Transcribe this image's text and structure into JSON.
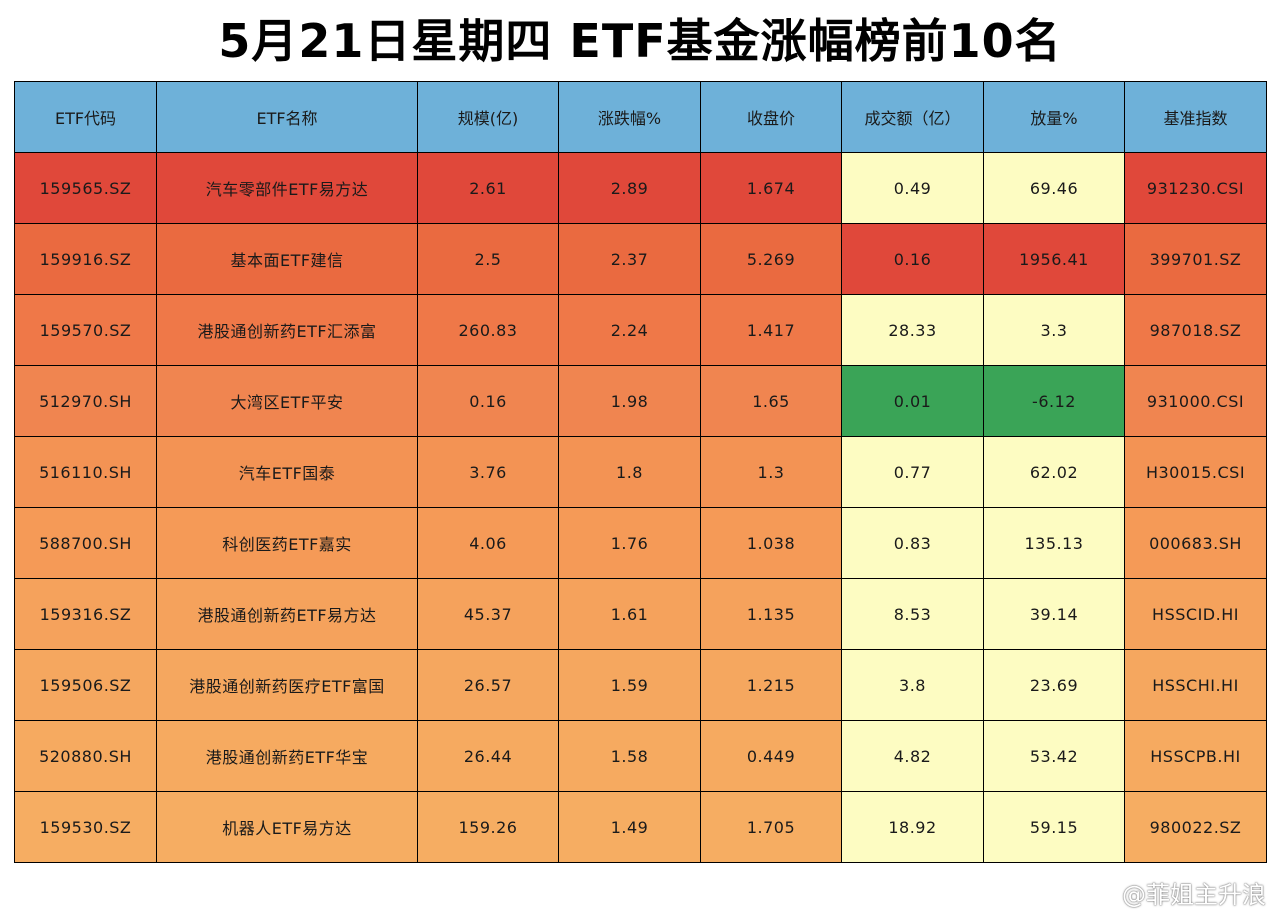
{
  "title": "5月21日星期四  ETF基金涨幅榜前10名",
  "watermark": {
    "text": "@菲姐主升浪",
    "icon": "weibo-logo-icon"
  },
  "colors": {
    "header": "#6eb1d9",
    "red_strong": "#e0483a",
    "red_orange": "#ea6a40",
    "orange": "#f07f4a",
    "orange_mid": "#f59856",
    "orange_light": "#f5a25c",
    "pale_yellow": "#fdfcc2",
    "green": "#3aa457"
  },
  "chart_data": {
    "type": "table",
    "title": "5月21日星期四  ETF基金涨幅榜前10名",
    "columns": [
      "ETF代码",
      "ETF名称",
      "规模(亿)",
      "涨跌幅%",
      "收盘价",
      "成交额（亿）",
      "放量%",
      "基准指数"
    ],
    "rows": [
      [
        "159565.SZ",
        "汽车零部件ETF易方达",
        "2.61",
        "2.89",
        "1.674",
        "0.49",
        "69.46",
        "931230.CSI"
      ],
      [
        "159916.SZ",
        "基本面ETF建信",
        "2.5",
        "2.37",
        "5.269",
        "0.16",
        "1956.41",
        "399701.SZ"
      ],
      [
        "159570.SZ",
        "港股通创新药ETF汇添富",
        "260.83",
        "2.24",
        "1.417",
        "28.33",
        "3.3",
        "987018.SZ"
      ],
      [
        "512970.SH",
        "大湾区ETF平安",
        "0.16",
        "1.98",
        "1.65",
        "0.01",
        "-6.12",
        "931000.CSI"
      ],
      [
        "516110.SH",
        "汽车ETF国泰",
        "3.76",
        "1.8",
        "1.3",
        "0.77",
        "62.02",
        "H30015.CSI"
      ],
      [
        "588700.SH",
        "科创医药ETF嘉实",
        "4.06",
        "1.76",
        "1.038",
        "0.83",
        "135.13",
        "000683.SH"
      ],
      [
        "159316.SZ",
        "港股通创新药ETF易方达",
        "45.37",
        "1.61",
        "1.135",
        "8.53",
        "39.14",
        "HSSCID.HI"
      ],
      [
        "159506.SZ",
        "港股通创新药医疗ETF富国",
        "26.57",
        "1.59",
        "1.215",
        "3.8",
        "23.69",
        "HSSCHI.HI"
      ],
      [
        "520880.SH",
        "港股通创新药ETF华宝",
        "26.44",
        "1.58",
        "0.449",
        "4.82",
        "53.42",
        "HSSCPB.HI"
      ],
      [
        "159530.SZ",
        "机器人ETF易方达",
        "159.26",
        "1.49",
        "1.705",
        "18.92",
        "59.15",
        "980022.SZ"
      ]
    ],
    "row_colors": [
      "#e0483a",
      "#ea6a40",
      "#ef7848",
      "#f08550",
      "#f39354",
      "#f59a57",
      "#f5a25c",
      "#f5a75f",
      "#f6aa60",
      "#f6ad62"
    ],
    "volume_cell_colors": [
      [
        "#fdfcc2",
        "#fdfcc2"
      ],
      [
        "#e0483a",
        "#e0483a"
      ],
      [
        "#fdfcc2",
        "#fdfcc2"
      ],
      [
        "#3aa457",
        "#3aa457"
      ],
      [
        "#fdfcc2",
        "#fdfcc2"
      ],
      [
        "#fdfcc2",
        "#fdfcc2"
      ],
      [
        "#fdfcc2",
        "#fdfcc2"
      ],
      [
        "#fdfcc2",
        "#fdfcc2"
      ],
      [
        "#fdfcc2",
        "#fdfcc2"
      ],
      [
        "#fdfcc2",
        "#fdfcc2"
      ]
    ]
  }
}
